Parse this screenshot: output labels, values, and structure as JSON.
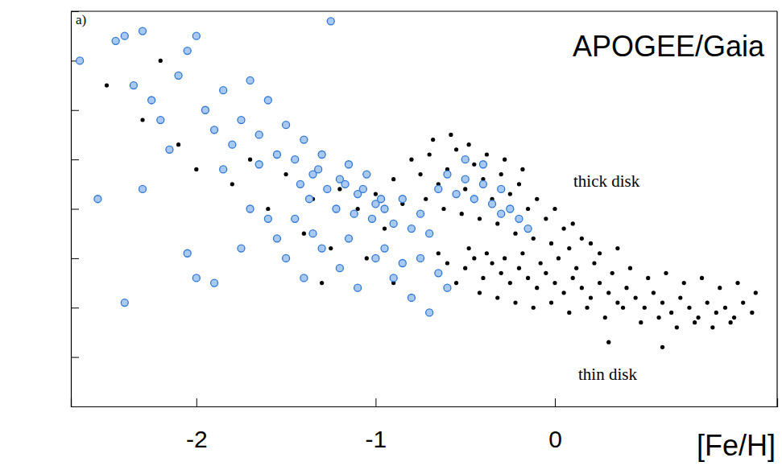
{
  "chart_data": {
    "type": "scatter",
    "title": "APOGEE/Gaia",
    "x_label": "[Fe/H]",
    "annotations": [
      "a)",
      "thick disk",
      "thin disk"
    ],
    "xlim": [
      -2.7,
      1.24
    ],
    "xticks": [
      -2,
      -1,
      0
    ],
    "ylim": [
      -0.2,
      0.6
    ],
    "yticks": [
      -0.1,
      0,
      0.1,
      0.2,
      0.3,
      0.4,
      0.5
    ],
    "tick_labels": "x",
    "grid": false,
    "series": [
      {
        "color": "#000000",
        "marker": "dot",
        "x": [
          -0.6,
          -0.5,
          -0.45,
          -0.4,
          -0.35,
          -0.3,
          -0.25,
          -0.2,
          -0.15,
          -0.1,
          -0.05,
          0,
          0.05,
          0.1,
          0.15,
          0.2,
          0.25,
          0.3,
          0.35,
          0.4,
          0.45,
          0.5,
          0.55,
          0.6,
          0.65,
          0.7,
          0.75,
          0.8,
          0.85,
          0.9,
          0.95,
          1.0,
          1.05,
          1.1,
          -0.55,
          -0.42,
          -0.32,
          -0.22,
          -0.12,
          -0.02,
          0.08,
          0.18,
          0.28,
          0.38,
          0.48,
          0.58,
          0.68,
          0.78,
          0.88,
          0.98,
          -0.48,
          -0.38,
          -0.28,
          -0.18,
          -0.08,
          0.02,
          0.12,
          0.22,
          0.32,
          0.42,
          0.52,
          0.62,
          0.72,
          0.82,
          0.92,
          1.02,
          1.12,
          -0.65,
          0.6,
          0.3,
          -0.8,
          -0.75,
          -0.7,
          -0.65,
          -0.6,
          -0.55,
          -0.5,
          -0.45,
          -0.4,
          -0.35,
          -0.3,
          -0.25,
          -0.2,
          -0.15,
          -0.1,
          -0.05,
          0,
          0.05,
          0.1,
          0.15,
          -0.72,
          -0.62,
          -0.52,
          -0.42,
          -0.32,
          -0.22,
          -0.12,
          -0.02,
          0.08,
          0.2,
          -0.9,
          -0.85,
          -0.68,
          -0.58,
          -0.48,
          -0.38,
          -0.28,
          -0.18,
          0.25,
          0.35,
          -2.5,
          -2.3,
          -2.1,
          -1.9,
          -1.7,
          -1.5,
          -1.35,
          -1.2,
          -1.1,
          -1.0,
          -1.8,
          -1.6,
          -1.4,
          -1.25,
          -1.05,
          -0.95,
          -2.2,
          -2.0,
          -1.3,
          -0.9
        ],
        "values": [
          0.09,
          0.08,
          0.1,
          0.06,
          0.09,
          0.07,
          0.05,
          0.08,
          0.06,
          0.04,
          0.07,
          0.05,
          0.03,
          0.06,
          0.04,
          0.02,
          0.05,
          0.03,
          0.01,
          0.04,
          0.02,
          0.0,
          0.03,
          0.01,
          -0.01,
          0.02,
          0.0,
          -0.02,
          0.01,
          -0.01,
          0.0,
          -0.02,
          0.01,
          -0.01,
          0.05,
          0.03,
          0.02,
          0.01,
          0.0,
          0.01,
          -0.01,
          0.0,
          -0.02,
          0.0,
          -0.03,
          -0.02,
          -0.04,
          -0.03,
          -0.04,
          -0.03,
          0.12,
          0.11,
          0.1,
          0.11,
          0.09,
          0.1,
          0.08,
          0.09,
          0.07,
          0.08,
          0.06,
          0.07,
          0.05,
          0.06,
          0.04,
          0.05,
          0.03,
          0.11,
          -0.08,
          -0.07,
          0.3,
          0.27,
          0.31,
          0.25,
          0.28,
          0.32,
          0.24,
          0.29,
          0.26,
          0.22,
          0.27,
          0.23,
          0.25,
          0.2,
          0.22,
          0.18,
          0.2,
          0.16,
          0.17,
          0.14,
          0.22,
          0.2,
          0.19,
          0.18,
          0.17,
          0.15,
          0.14,
          0.13,
          0.12,
          0.13,
          0.26,
          0.21,
          0.34,
          0.35,
          0.33,
          0.31,
          0.3,
          0.28,
          0.11,
          0.12,
          0.45,
          0.38,
          0.33,
          0.36,
          0.3,
          0.27,
          0.22,
          0.24,
          0.2,
          0.23,
          0.25,
          0.2,
          0.15,
          0.12,
          0.1,
          0.16,
          0.5,
          0.28,
          0.05,
          0.05
        ]
      },
      {
        "color": "#2f78d6",
        "marker": "circle",
        "x": [
          -2.65,
          -2.45,
          -2.4,
          -2.35,
          -2.3,
          -2.25,
          -2.2,
          -2.1,
          -2.05,
          -2.0,
          -1.95,
          -1.9,
          -1.85,
          -1.8,
          -1.75,
          -1.7,
          -1.65,
          -1.6,
          -1.55,
          -1.5,
          -1.45,
          -1.4,
          -1.35,
          -1.3,
          -1.25,
          -1.2,
          -1.15,
          -1.1,
          -1.05,
          -1.0,
          -1.42,
          -1.37,
          -1.32,
          -1.27,
          -1.22,
          -1.17,
          -1.12,
          -1.07,
          -1.02,
          -0.97,
          -0.95,
          -0.9,
          -0.85,
          -0.8,
          -0.75,
          -0.7,
          -0.65,
          -0.6,
          -0.55,
          -0.5,
          -0.45,
          -0.4,
          -0.35,
          -0.3,
          -0.25,
          -0.2,
          -0.15,
          -0.5,
          -0.4,
          -0.3,
          -1.5,
          -1.4,
          -1.3,
          -1.2,
          -1.1,
          -1.0,
          -0.9,
          -0.8,
          -0.7,
          -0.6,
          -2.4,
          -2.05,
          -2.0,
          -1.9,
          -1.75,
          -2.55,
          -2.3,
          -1.65,
          -1.55,
          -1.6,
          -2.15,
          -1.85,
          -1.7,
          -1.45,
          -1.35,
          -1.15,
          -0.95,
          -0.85,
          -0.75,
          -0.65
        ],
        "values": [
          0.5,
          0.54,
          0.55,
          0.45,
          0.56,
          0.42,
          0.38,
          0.47,
          0.52,
          0.55,
          0.4,
          0.36,
          0.44,
          0.33,
          0.38,
          0.46,
          0.35,
          0.42,
          0.31,
          0.37,
          0.3,
          0.34,
          0.27,
          0.31,
          0.58,
          0.26,
          0.29,
          0.23,
          0.27,
          0.21,
          0.25,
          0.22,
          0.28,
          0.24,
          0.2,
          0.25,
          0.19,
          0.24,
          0.18,
          0.22,
          0.2,
          0.17,
          0.22,
          0.16,
          0.19,
          0.15,
          0.24,
          0.27,
          0.23,
          0.26,
          0.22,
          0.25,
          0.21,
          0.24,
          0.2,
          0.18,
          0.16,
          0.3,
          0.29,
          0.19,
          0.1,
          0.06,
          0.12,
          0.08,
          0.04,
          0.1,
          0.06,
          0.02,
          -0.01,
          0.04,
          0.01,
          0.11,
          0.06,
          0.05,
          0.12,
          0.22,
          0.24,
          0.29,
          0.14,
          0.18,
          0.32,
          0.28,
          0.2,
          0.18,
          0.15,
          0.14,
          0.12,
          0.09,
          0.1,
          0.07
        ]
      }
    ]
  }
}
